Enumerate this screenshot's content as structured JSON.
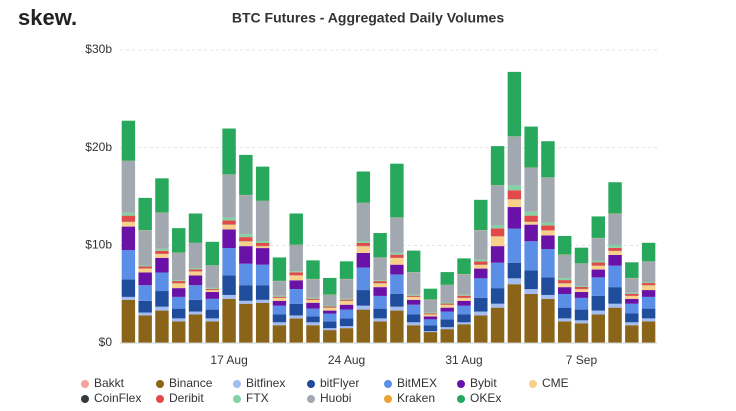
{
  "chart_data": {
    "type": "stacked_bar",
    "logo": "skew.",
    "title": "BTC Futures - Aggregated Daily Volumes",
    "categories": [
      null,
      null,
      null,
      null,
      null,
      null,
      "17 Aug",
      null,
      null,
      null,
      null,
      null,
      null,
      "24 Aug",
      null,
      null,
      null,
      null,
      null,
      null,
      "31 Aug",
      null,
      null,
      null,
      null,
      null,
      null,
      "7 Sep",
      null,
      null,
      null,
      null
    ],
    "ylim": [
      0,
      30
    ],
    "yticks": [
      {
        "value": 0,
        "label": "$0"
      },
      {
        "value": 10,
        "label": "$10b"
      },
      {
        "value": 20,
        "label": "$20b"
      },
      {
        "value": 30,
        "label": "$30b"
      }
    ],
    "grid": true,
    "series": [
      {
        "name": "Bakkt",
        "color": "#f4a3a3",
        "values": [
          0.02,
          0.02,
          0.02,
          0.02,
          0.02,
          0.02,
          0.02,
          0.02,
          0.02,
          0.02,
          0.02,
          0.02,
          0.02,
          0.02,
          0.02,
          0.02,
          0.02,
          0.02,
          0.02,
          0.02,
          0.02,
          0.02,
          0.02,
          0.02,
          0.02,
          0.02,
          0.02,
          0.02,
          0.02,
          0.02,
          0.02,
          0.02
        ]
      },
      {
        "name": "Binance",
        "color": "#8a6418",
        "values": [
          4.4,
          2.8,
          3.3,
          2.2,
          2.9,
          2.2,
          4.5,
          4.0,
          4.1,
          1.8,
          2.5,
          1.8,
          1.3,
          1.5,
          3.4,
          2.2,
          3.3,
          1.8,
          1.1,
          1.4,
          1.9,
          2.8,
          3.6,
          6.0,
          5.0,
          4.5,
          2.2,
          2.0,
          2.9,
          3.6,
          1.8,
          2.2
        ]
      },
      {
        "name": "Bitfinex",
        "color": "#a3bdf2",
        "values": [
          0.3,
          0.3,
          0.4,
          0.3,
          0.3,
          0.3,
          0.4,
          0.3,
          0.3,
          0.3,
          0.3,
          0.3,
          0.2,
          0.2,
          0.4,
          0.3,
          0.4,
          0.3,
          0.1,
          0.2,
          0.2,
          0.4,
          0.4,
          0.6,
          0.5,
          0.4,
          0.3,
          0.3,
          0.4,
          0.4,
          0.3,
          0.3
        ]
      },
      {
        "name": "bitFlyer",
        "color": "#1f4d9c",
        "values": [
          1.8,
          1.2,
          1.6,
          1.0,
          1.2,
          0.9,
          2.0,
          1.6,
          1.5,
          0.8,
          1.2,
          0.6,
          0.7,
          0.8,
          1.6,
          1.0,
          1.3,
          0.8,
          0.6,
          0.8,
          0.8,
          1.4,
          1.6,
          1.6,
          1.9,
          1.8,
          1.1,
          1.1,
          1.5,
          1.7,
          0.9,
          1.0
        ]
      },
      {
        "name": "BitMEX",
        "color": "#5b8ee6",
        "values": [
          3.0,
          1.6,
          1.9,
          1.2,
          1.5,
          1.1,
          2.8,
          2.2,
          2.1,
          0.9,
          1.5,
          0.8,
          0.8,
          0.9,
          2.3,
          1.3,
          2.0,
          1.0,
          0.6,
          0.8,
          0.9,
          2.0,
          2.6,
          3.5,
          3.0,
          2.9,
          1.4,
          1.2,
          1.9,
          2.2,
          1.0,
          1.2
        ]
      },
      {
        "name": "Bybit",
        "color": "#6a12a8",
        "values": [
          2.4,
          1.3,
          1.5,
          0.9,
          1.0,
          0.7,
          1.9,
          1.8,
          1.7,
          0.5,
          0.9,
          0.6,
          0.3,
          0.5,
          1.5,
          0.9,
          1.0,
          0.5,
          0.3,
          0.4,
          0.5,
          1.0,
          1.7,
          2.2,
          1.7,
          1.4,
          0.7,
          0.6,
          0.8,
          1.1,
          0.5,
          0.7
        ]
      },
      {
        "name": "CME",
        "color": "#f7d08c",
        "values": [
          0.5,
          0.4,
          0.4,
          0.5,
          0.4,
          0.2,
          0.5,
          0.5,
          0.2,
          0.3,
          0.5,
          0.3,
          0.3,
          0.4,
          0.7,
          0.4,
          0.7,
          0.3,
          0.2,
          0.3,
          0.3,
          0.4,
          1.0,
          0.8,
          0.3,
          0.5,
          0.4,
          0.3,
          0.4,
          0.4,
          0.3,
          0.5
        ]
      },
      {
        "name": "CoinFlex",
        "color": "#333a40",
        "values": [
          0.02,
          0.02,
          0.02,
          0.02,
          0.02,
          0.02,
          0.02,
          0.02,
          0.02,
          0.02,
          0.02,
          0.02,
          0.02,
          0.02,
          0.02,
          0.02,
          0.02,
          0.02,
          0.02,
          0.02,
          0.02,
          0.02,
          0.02,
          0.02,
          0.02,
          0.02,
          0.02,
          0.02,
          0.02,
          0.02,
          0.02,
          0.02
        ]
      },
      {
        "name": "Deribit",
        "color": "#e24a4a",
        "values": [
          0.6,
          0.2,
          0.3,
          0.2,
          0.2,
          0.1,
          0.4,
          0.4,
          0.3,
          0.1,
          0.3,
          0.1,
          0.1,
          0.1,
          0.3,
          0.2,
          0.3,
          0.1,
          0.1,
          0.1,
          0.2,
          0.3,
          0.8,
          0.9,
          0.6,
          0.5,
          0.3,
          0.2,
          0.3,
          0.3,
          0.2,
          0.2
        ]
      },
      {
        "name": "FTX",
        "color": "#84d1a4",
        "values": [
          0.3,
          0.1,
          0.2,
          0.1,
          0.1,
          0.1,
          0.3,
          0.3,
          0.2,
          0.1,
          0.1,
          0.1,
          0.1,
          0.1,
          0.2,
          0.1,
          0.2,
          0.1,
          0.1,
          0.1,
          0.1,
          0.2,
          0.3,
          0.5,
          0.4,
          0.3,
          0.2,
          0.1,
          0.2,
          0.3,
          0.1,
          0.1
        ]
      },
      {
        "name": "Huobi",
        "color": "#a2a8b0",
        "values": [
          5.3,
          3.6,
          3.7,
          2.8,
          2.6,
          2.3,
          4.4,
          4.0,
          4.1,
          1.5,
          2.7,
          1.9,
          1.1,
          2.0,
          3.9,
          2.3,
          3.6,
          2.3,
          1.3,
          1.8,
          2.1,
          3.0,
          4.1,
          5.0,
          4.5,
          4.6,
          2.4,
          2.3,
          2.3,
          3.2,
          1.5,
          2.1
        ]
      },
      {
        "name": "Kraken",
        "color": "#eba233",
        "values": [
          0.02,
          0.02,
          0.02,
          0.02,
          0.02,
          0.02,
          0.02,
          0.02,
          0.02,
          0.02,
          0.02,
          0.02,
          0.02,
          0.02,
          0.02,
          0.02,
          0.02,
          0.02,
          0.02,
          0.02,
          0.02,
          0.02,
          0.02,
          0.02,
          0.02,
          0.02,
          0.02,
          0.02,
          0.02,
          0.02,
          0.02,
          0.02
        ]
      },
      {
        "name": "OKEx",
        "color": "#27a85c",
        "values": [
          4.1,
          3.3,
          3.5,
          2.5,
          3.0,
          2.4,
          4.7,
          4.1,
          3.5,
          2.4,
          3.2,
          1.9,
          1.7,
          1.8,
          3.2,
          2.5,
          5.5,
          2.2,
          1.1,
          1.3,
          1.6,
          3.1,
          4.0,
          6.6,
          4.2,
          3.7,
          1.9,
          1.6,
          2.2,
          3.2,
          1.6,
          1.9
        ]
      }
    ]
  }
}
